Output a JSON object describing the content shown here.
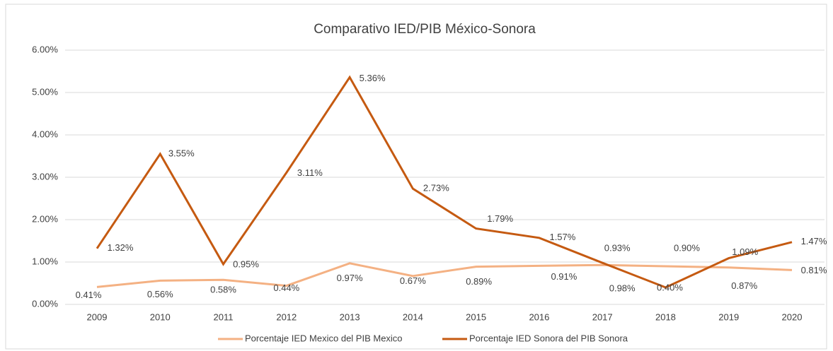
{
  "chart_data": {
    "type": "line",
    "title": "Comparativo IED/PIB México-Sonora",
    "categories": [
      "2009",
      "2010",
      "2011",
      "2012",
      "2013",
      "2014",
      "2015",
      "2016",
      "2017",
      "2018",
      "2019",
      "2020"
    ],
    "series": [
      {
        "name": "Porcentaje IED Mexico del PIB Mexico",
        "color": "#f4b183",
        "values": [
          0.41,
          0.56,
          0.58,
          0.44,
          0.97,
          0.67,
          0.89,
          0.91,
          0.93,
          0.9,
          0.87,
          0.81
        ],
        "value_labels": [
          "0.41%",
          "0.56%",
          "0.58%",
          "0.44%",
          "0.97%",
          "0.67%",
          "0.89%",
          "0.91%",
          "0.93%",
          "0.90%",
          "0.87%",
          "0.81%"
        ]
      },
      {
        "name": "Porcentaje IED Sonora del PIB Sonora",
        "color": "#c55a11",
        "values": [
          1.32,
          3.55,
          0.95,
          3.11,
          5.36,
          2.73,
          1.79,
          1.57,
          0.98,
          0.4,
          1.09,
          1.47
        ],
        "value_labels": [
          "1.32%",
          "3.55%",
          "0.95%",
          "3.11%",
          "5.36%",
          "2.73%",
          "1.79%",
          "1.57%",
          "0.98%",
          "0.40%",
          "1.09%",
          "1.47%"
        ]
      }
    ],
    "ylim": [
      0,
      6
    ],
    "yticks": [
      {
        "value": 0,
        "label": "0.00%"
      },
      {
        "value": 1,
        "label": "1.00%"
      },
      {
        "value": 2,
        "label": "2.00%"
      },
      {
        "value": 3,
        "label": "3.00%"
      },
      {
        "value": 4,
        "label": "4.00%"
      },
      {
        "value": 5,
        "label": "5.00%"
      },
      {
        "value": 6,
        "label": "6.00%"
      }
    ],
    "grid": true,
    "legend": "bottom"
  }
}
